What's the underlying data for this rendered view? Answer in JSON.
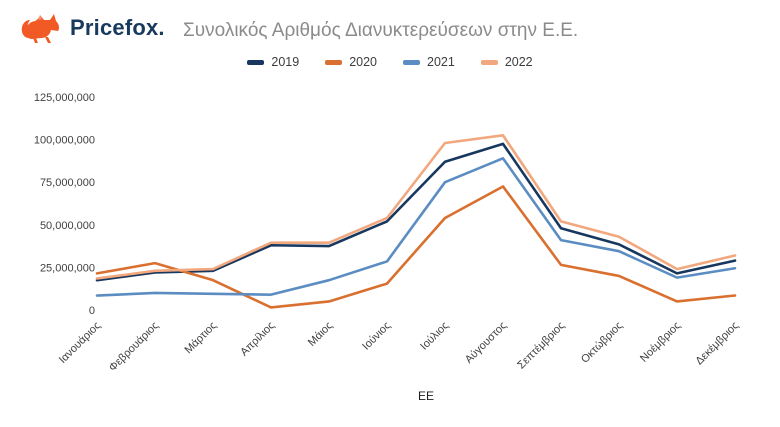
{
  "header": {
    "logo_text": "Pricefox.",
    "title": "Συνολικός Αριθμός Διανυκτερεύσεων στην Ε.Ε."
  },
  "chart_data": {
    "type": "line",
    "title": "Συνολικός Αριθμός Διανυκτερεύσεων στην Ε.Ε.",
    "categories": [
      "Ιανουάριος",
      "Φεβρουάριος",
      "Μάρτιος",
      "Απρίλιος",
      "Μάιος",
      "Ιούνιος",
      "Ιούλιος",
      "Αύγουστος",
      "Σεπτέμβριος",
      "Οκτώβριος",
      "Νοέμβριος",
      "Δεκέμβριος"
    ],
    "series": [
      {
        "name": "2019",
        "color": "#17375E",
        "values": [
          17500000,
          22000000,
          23000000,
          38000000,
          37500000,
          52000000,
          87000000,
          97500000,
          48000000,
          38500000,
          21500000,
          29000000
        ]
      },
      {
        "name": "2020",
        "color": "#D9702F",
        "values": [
          21500000,
          27500000,
          17500000,
          1500000,
          5000000,
          15500000,
          54000000,
          72500000,
          26500000,
          20000000,
          5000000,
          8500000
        ]
      },
      {
        "name": "2021",
        "color": "#5C8DC2",
        "values": [
          8500000,
          10000000,
          9500000,
          9000000,
          17500000,
          28500000,
          75000000,
          89000000,
          41000000,
          34500000,
          19000000,
          24500000
        ]
      },
      {
        "name": "2022",
        "color": "#F1A87E",
        "values": [
          18500000,
          23000000,
          24000000,
          39500000,
          39500000,
          54000000,
          98000000,
          102500000,
          52000000,
          43000000,
          24000000,
          32000000
        ]
      }
    ],
    "xlabel": "ΕΕ",
    "ylabel": "",
    "ylim": [
      0,
      125000000
    ],
    "yticks": [
      0,
      25000000,
      50000000,
      75000000,
      100000000,
      125000000
    ],
    "grid": false,
    "legend_position": "top",
    "brand_orange": "#F15A24",
    "brand_navy": "#173A5E",
    "title_color": "#8B8B8B"
  }
}
